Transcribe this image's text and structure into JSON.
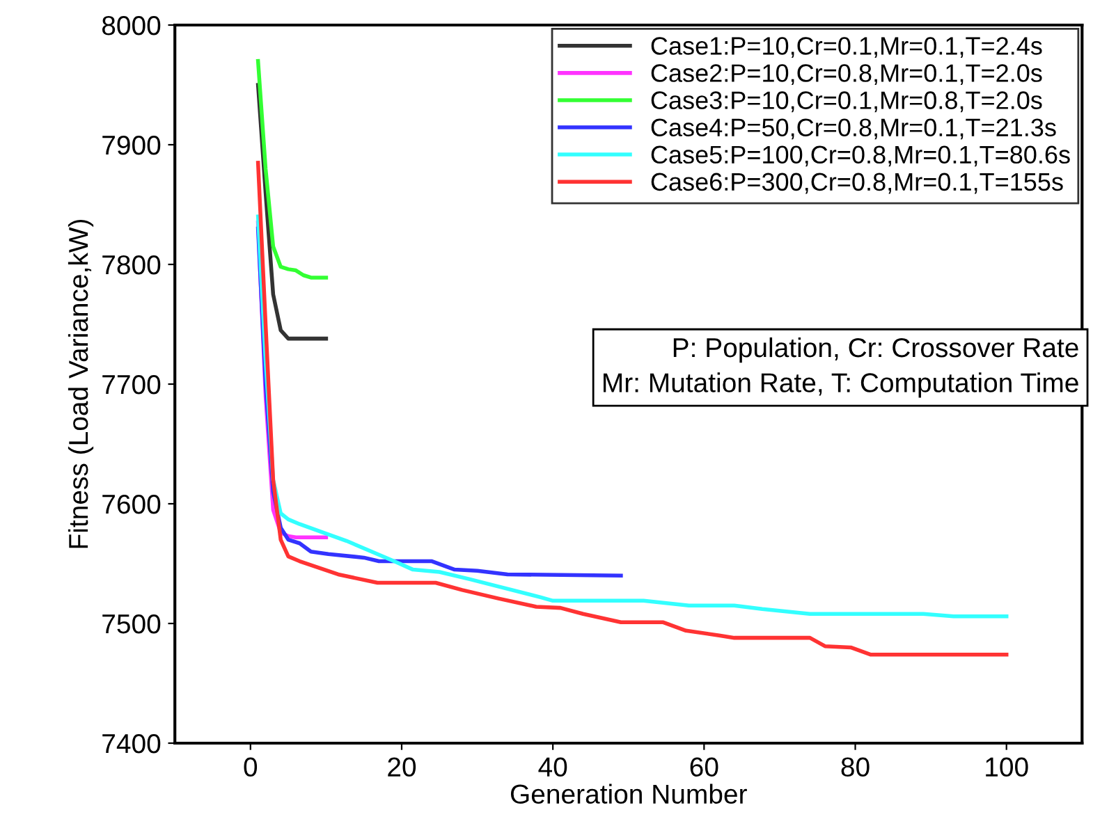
{
  "chart_data": {
    "type": "line",
    "xlabel": "Generation Number",
    "ylabel": "Fitness (Load Variance,kW)",
    "xlim": [
      -10,
      110
    ],
    "ylim": [
      7400,
      8000
    ],
    "xticks": [
      0,
      20,
      40,
      60,
      80,
      100
    ],
    "yticks": [
      7400,
      7500,
      7600,
      7700,
      7800,
      7900,
      8000
    ],
    "grid": false,
    "legend": "top right",
    "line_style": "solid",
    "marker": "none",
    "annotations": [
      "P: Population, Cr: Crossover Rate\nMr: Mutation Rate, T: Computation Time"
    ],
    "series": [
      {
        "name": "Case1:P=10,Cr=0.1,Mr=0.1,T=2.4s",
        "color": "#333333",
        "x": [
          1,
          2,
          3,
          4,
          5,
          6,
          7,
          8,
          9,
          10
        ],
        "values": [
          7950,
          7860,
          7775,
          7745,
          7738,
          7738,
          7738,
          7738,
          7738,
          7738
        ]
      },
      {
        "name": "Case2:P=10,Cr=0.8,Mr=0.1,T=2.0s",
        "color": "#ff33ff",
        "x": [
          1,
          2,
          3,
          4,
          5,
          6,
          7,
          8,
          9,
          10
        ],
        "values": [
          7835,
          7690,
          7595,
          7576,
          7573,
          7572,
          7572,
          7572,
          7572,
          7572
        ]
      },
      {
        "name": "Case3:P=10,Cr=0.1,Mr=0.8,T=2.0s",
        "color": "#33ff33",
        "x": [
          1,
          2,
          3,
          4,
          5,
          6,
          7,
          8,
          9,
          10
        ],
        "values": [
          7970,
          7880,
          7815,
          7798,
          7796,
          7795,
          7791,
          7789,
          7789,
          7789
        ]
      },
      {
        "name": "Case4:P=50,Cr=0.8,Mr=0.1,T=21.3s",
        "color": "#3333ff",
        "x": [
          1,
          2,
          3,
          4,
          5,
          6.5,
          8,
          10.3,
          15,
          17,
          24,
          27,
          30,
          34,
          49
        ],
        "values": [
          7830,
          7700,
          7610,
          7580,
          7570,
          7567,
          7560,
          7558,
          7555,
          7552,
          7552,
          7545,
          7544,
          7541,
          7540
        ]
      },
      {
        "name": "Case5:P=100,Cr=0.8,Mr=0.1,T=80.6s",
        "color": "#33ffff",
        "x": [
          1,
          2,
          3,
          4,
          5,
          6.5,
          12.7,
          19,
          21.5,
          25,
          29,
          32.7,
          38.3,
          40,
          52,
          58,
          64,
          67.7,
          74,
          89,
          93,
          100
        ],
        "values": [
          7840,
          7720,
          7620,
          7592,
          7587,
          7583,
          7569,
          7552,
          7545,
          7543,
          7537,
          7531,
          7522,
          7519,
          7519,
          7515,
          7515,
          7512,
          7508,
          7508,
          7506,
          7506
        ]
      },
      {
        "name": "Case6:P=300,Cr=0.8,Mr=0.1,T=155s",
        "color": "#ff3333",
        "x": [
          1,
          2,
          3,
          4,
          5,
          6.5,
          11.6,
          16.8,
          24.5,
          28,
          32.7,
          37.8,
          41,
          44,
          49,
          54.6,
          57.6,
          62,
          64,
          74,
          76,
          79.4,
          82,
          100
        ],
        "values": [
          7885,
          7750,
          7620,
          7570,
          7556,
          7552,
          7541,
          7534,
          7534,
          7528,
          7521,
          7514,
          7513,
          7508,
          7501,
          7501,
          7494,
          7490,
          7488,
          7488,
          7481,
          7480,
          7474,
          7474
        ]
      }
    ]
  }
}
